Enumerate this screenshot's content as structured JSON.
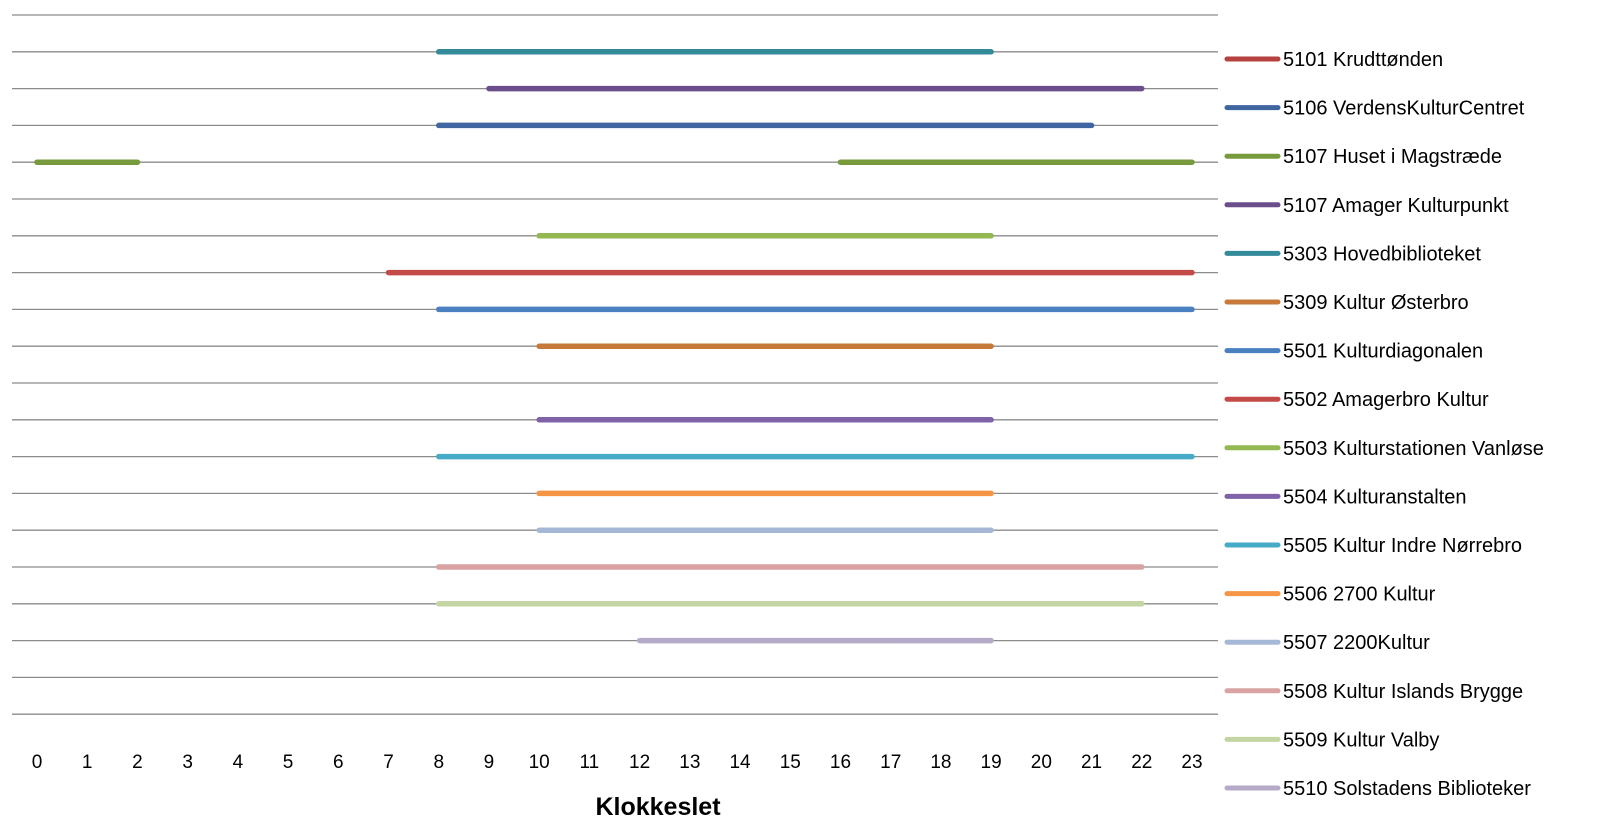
{
  "chart_data": {
    "type": "gantt",
    "title": "",
    "xlabel": "Klokkeslet",
    "ylabel": "",
    "xlim": [
      0,
      23
    ],
    "x_ticks": [
      0,
      1,
      2,
      3,
      4,
      5,
      6,
      7,
      8,
      9,
      10,
      11,
      12,
      13,
      14,
      15,
      16,
      17,
      18,
      19,
      20,
      21,
      22,
      23
    ],
    "grid": true,
    "legend_position": "right",
    "rows": [
      {
        "segments": []
      },
      {
        "series": "5303 Hovedbiblioteket",
        "segments": [
          [
            8,
            19
          ]
        ]
      },
      {
        "series": "5107 Amager Kulturpunkt",
        "segments": [
          [
            9,
            22
          ]
        ]
      },
      {
        "series": "5106 VerdensKulturCentret",
        "segments": [
          [
            8,
            21
          ]
        ]
      },
      {
        "series": "5107 Huset i Magstræde",
        "segments": [
          [
            0,
            2
          ],
          [
            16,
            23
          ]
        ]
      },
      {
        "segments": []
      },
      {
        "series": "5503 Kulturstationen Vanløse",
        "segments": [
          [
            10,
            19
          ]
        ]
      },
      {
        "series": "5502 Amagerbro Kultur",
        "segments": [
          [
            7,
            23
          ]
        ]
      },
      {
        "series": "5501 Kulturdiagonalen",
        "segments": [
          [
            8,
            23
          ]
        ]
      },
      {
        "series": "5309 Kultur Østerbro",
        "segments": [
          [
            10,
            19
          ]
        ]
      },
      {
        "segments": []
      },
      {
        "series": "5504 Kulturanstalten",
        "segments": [
          [
            10,
            19
          ]
        ]
      },
      {
        "series": "5505 Kultur Indre Nørrebro",
        "segments": [
          [
            8,
            23
          ]
        ]
      },
      {
        "series": "5506 2700 Kultur",
        "segments": [
          [
            10,
            19
          ]
        ]
      },
      {
        "series": "5507 2200Kultur",
        "segments": [
          [
            10,
            19
          ]
        ]
      },
      {
        "series": "5508 Kultur Islands Brygge",
        "segments": [
          [
            8,
            22
          ]
        ]
      },
      {
        "series": "5509 Kultur Valby",
        "segments": [
          [
            8,
            22
          ]
        ]
      },
      {
        "series": "5510 Solstadens Biblioteker",
        "segments": [
          [
            12,
            19
          ]
        ]
      },
      {
        "segments": []
      },
      {
        "segments": []
      }
    ],
    "legend": [
      {
        "name": "5101 Krudttønden",
        "color": "#b5423e"
      },
      {
        "name": "5106 VerdensKulturCentret",
        "color": "#3f66a0"
      },
      {
        "name": "5107 Huset i Magstræde",
        "color": "#779a3d"
      },
      {
        "name": "5107 Amager Kulturpunkt",
        "color": "#6d4e8c"
      },
      {
        "name": "5303 Hovedbiblioteket",
        "color": "#338a99"
      },
      {
        "name": "5309 Kultur Østerbro",
        "color": "#c7793a"
      },
      {
        "name": "5501 Kulturdiagonalen",
        "color": "#4a7fc0"
      },
      {
        "name": "5502 Amagerbro Kultur",
        "color": "#c44a47"
      },
      {
        "name": "5503 Kulturstationen Vanløse",
        "color": "#93b851"
      },
      {
        "name": "5504 Kulturanstalten",
        "color": "#7f62a8"
      },
      {
        "name": "5505 Kultur Indre Nørrebro",
        "color": "#45abc6"
      },
      {
        "name": "5506 2700 Kultur",
        "color": "#f59545"
      },
      {
        "name": "5507 2200Kultur",
        "color": "#a5b8d6"
      },
      {
        "name": "5508 Kultur Islands Brygge",
        "color": "#d8a3a2"
      },
      {
        "name": "5509 Kultur Valby",
        "color": "#c3d5a2"
      },
      {
        "name": "5510 Solstadens Biblioteker",
        "color": "#b5abc9"
      }
    ]
  }
}
